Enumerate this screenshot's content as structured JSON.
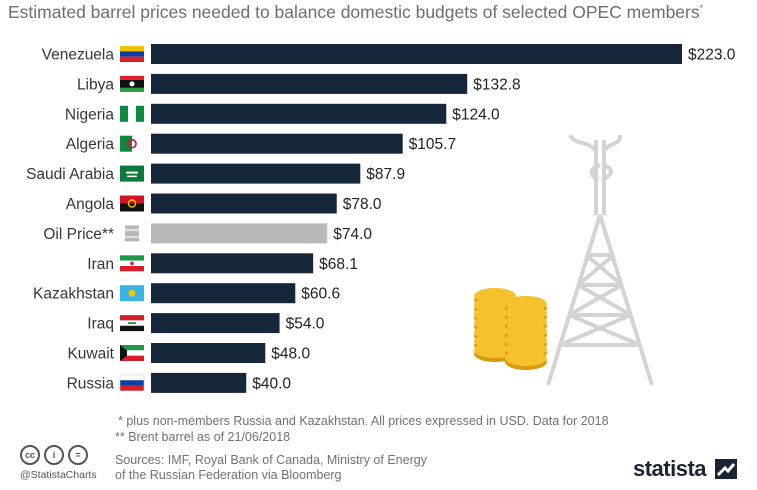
{
  "header": {
    "subtitle": "Estimated barrel prices needed to balance domestic budgets of selected OPEC members",
    "subtitle_mark": "*"
  },
  "chart_data": {
    "type": "bar",
    "orientation": "horizontal",
    "categories": [
      "Venezuela",
      "Libya",
      "Nigeria",
      "Algeria",
      "Saudi Arabia",
      "Angola",
      "Oil Price**",
      "Iran",
      "Kazakhstan",
      "Iraq",
      "Kuwait",
      "Russia"
    ],
    "values": [
      223.0,
      132.8,
      124.0,
      105.7,
      87.9,
      78.0,
      74.0,
      68.1,
      60.6,
      54.0,
      48.0,
      40.0
    ],
    "value_labels": [
      "$223.0",
      "$132.8",
      "$124.0",
      "$105.7",
      "$87.9",
      "$78.0",
      "$74.0",
      "$68.1",
      "$60.6",
      "$54.0",
      "$48.0",
      "$40.0"
    ],
    "flags": [
      "venezuela-flag-icon",
      "libya-flag-icon",
      "nigeria-flag-icon",
      "algeria-flag-icon",
      "saudi-arabia-flag-icon",
      "angola-flag-icon",
      "oil-barrel-icon",
      "iran-flag-icon",
      "kazakhstan-flag-icon",
      "iraq-flag-icon",
      "kuwait-flag-icon",
      "russia-flag-icon"
    ],
    "highlight_category": "Oil Price**",
    "bar_color": "#16263b",
    "highlight_color": "#b8b8b8",
    "xlim": [
      0,
      223
    ],
    "grid": false
  },
  "footer": {
    "note1": "*   plus non-members Russia and Kazakhstan. All prices expressed in USD. Data for 2018",
    "note2": "** Brent barrel as of 21/06/2018",
    "sources_line1": "Sources: IMF, Royal Bank of Canada, Ministry of Energy",
    "sources_line2": "of the Russian Federation via Bloomberg",
    "handle": "@StatistaCharts",
    "brand": "statista",
    "cc_icons": [
      "cc",
      "i",
      "="
    ]
  }
}
